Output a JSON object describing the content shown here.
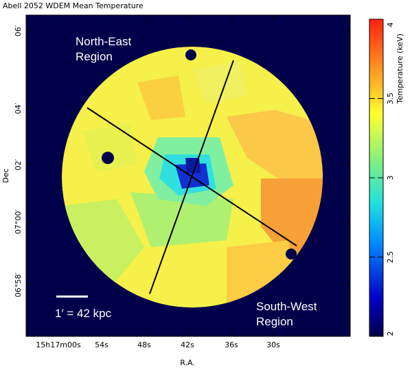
{
  "figure": {
    "title": "Abell 2052 WDEM Mean Temperature",
    "x_label": "R.A.",
    "y_label": "Dec",
    "x_ticks": [
      "15h17m00s",
      "54s",
      "48s",
      "42s",
      "36s",
      "30s"
    ],
    "y_ticks": [
      "06°58′",
      "07°00′",
      "02′",
      "04′",
      "06′"
    ],
    "annotations": {
      "north_east": [
        "North-East",
        "Region"
      ],
      "south_west": [
        "South-West",
        "Region"
      ],
      "scale": "1′ = 42 kpc"
    },
    "colorbar": {
      "label": "Temperature (keV)",
      "lim": [
        2,
        4
      ],
      "ticks": [
        2,
        2.5,
        3,
        3.5,
        4
      ]
    }
  }
}
